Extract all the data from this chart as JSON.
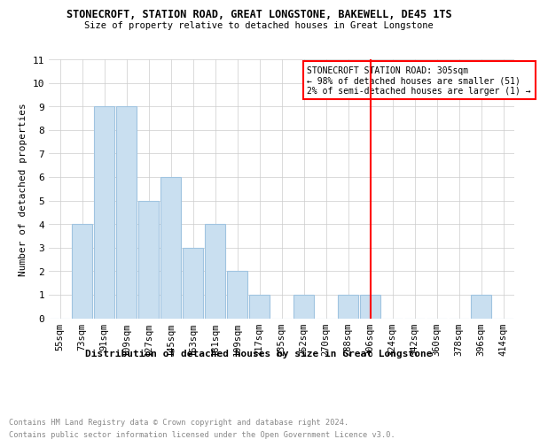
{
  "title": "STONECROFT, STATION ROAD, GREAT LONGSTONE, BAKEWELL, DE45 1TS",
  "subtitle": "Size of property relative to detached houses in Great Longstone",
  "xlabel": "Distribution of detached houses by size in Great Longstone",
  "ylabel": "Number of detached properties",
  "categories": [
    "55sqm",
    "73sqm",
    "91sqm",
    "109sqm",
    "127sqm",
    "145sqm",
    "163sqm",
    "181sqm",
    "199sqm",
    "217sqm",
    "235sqm",
    "252sqm",
    "270sqm",
    "288sqm",
    "306sqm",
    "324sqm",
    "342sqm",
    "360sqm",
    "378sqm",
    "396sqm",
    "414sqm"
  ],
  "values": [
    0,
    4,
    9,
    9,
    5,
    6,
    3,
    4,
    2,
    1,
    0,
    1,
    0,
    1,
    1,
    0,
    0,
    0,
    0,
    1,
    0
  ],
  "bar_color": "#c9dff0",
  "bar_edge_color": "#a0c4e0",
  "red_line_index": 14,
  "ylim": [
    0,
    11
  ],
  "yticks": [
    0,
    1,
    2,
    3,
    4,
    5,
    6,
    7,
    8,
    9,
    10,
    11
  ],
  "annotation_title": "STONECROFT STATION ROAD: 305sqm",
  "annotation_line1": "← 98% of detached houses are smaller (51)",
  "annotation_line2": "2% of semi-detached houses are larger (1) →",
  "footer_line1": "Contains HM Land Registry data © Crown copyright and database right 2024.",
  "footer_line2": "Contains public sector information licensed under the Open Government Licence v3.0.",
  "background_color": "#ffffff",
  "grid_color": "#cccccc"
}
